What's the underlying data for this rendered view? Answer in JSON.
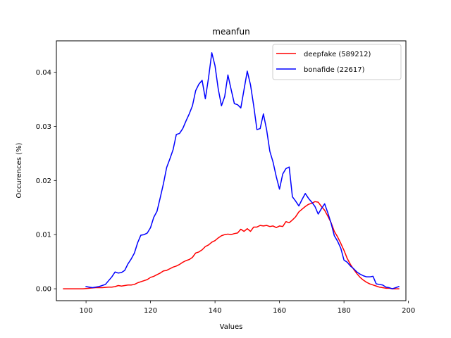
{
  "chart_data": {
    "type": "line",
    "title": "meanfun",
    "xlabel": "Values",
    "ylabel": "Occurences (%)",
    "xlim": [
      90.8,
      199.2
    ],
    "ylim": [
      -0.0022,
      0.0458
    ],
    "xticks": [
      100,
      120,
      140,
      160,
      180,
      200
    ],
    "yticks": [
      0.0,
      0.01,
      0.02,
      0.03,
      0.04
    ],
    "xtick_labels": [
      "100",
      "120",
      "140",
      "160",
      "180",
      "200"
    ],
    "ytick_labels": [
      "0.00",
      "0.01",
      "0.02",
      "0.03",
      "0.04"
    ],
    "grid": false,
    "legend_position": "top-right",
    "series": [
      {
        "name": "deepfake (589212)",
        "color": "#ff0000",
        "x": [
          93,
          95,
          97,
          99,
          101,
          103,
          105,
          107,
          108,
          109,
          110,
          111,
          112,
          113,
          114,
          115,
          116,
          117,
          118,
          119,
          120,
          121,
          122,
          123,
          124,
          125,
          126,
          127,
          128,
          129,
          130,
          131,
          132,
          133,
          134,
          135,
          136,
          137,
          138,
          139,
          140,
          141,
          142,
          143,
          144,
          145,
          146,
          147,
          148,
          149,
          150,
          151,
          152,
          153,
          154,
          155,
          156,
          157,
          158,
          159,
          160,
          161,
          162,
          163,
          164,
          165,
          166,
          167,
          168,
          169,
          170,
          171,
          172,
          173,
          174,
          175,
          176,
          177,
          178,
          179,
          180,
          181,
          182,
          183,
          184,
          185,
          186,
          187,
          188,
          189,
          190,
          191,
          192,
          193,
          194,
          195,
          196,
          197
        ],
        "values": [
          0.0,
          0.0,
          0.0,
          0.0,
          0.0001,
          0.0002,
          0.0002,
          0.0003,
          0.0003,
          0.0004,
          0.0006,
          0.0005,
          0.0006,
          0.0007,
          0.0007,
          0.0008,
          0.0011,
          0.0013,
          0.0015,
          0.0017,
          0.0021,
          0.0023,
          0.0026,
          0.0029,
          0.0033,
          0.0034,
          0.0037,
          0.004,
          0.0042,
          0.0045,
          0.0049,
          0.0052,
          0.0054,
          0.0058,
          0.0066,
          0.0068,
          0.0072,
          0.0078,
          0.0081,
          0.0086,
          0.0089,
          0.0094,
          0.0098,
          0.01,
          0.0101,
          0.01,
          0.0102,
          0.0103,
          0.011,
          0.0106,
          0.0111,
          0.0106,
          0.0114,
          0.0114,
          0.0117,
          0.0116,
          0.0117,
          0.0115,
          0.0116,
          0.0113,
          0.0116,
          0.0115,
          0.0124,
          0.0122,
          0.0127,
          0.0133,
          0.0142,
          0.0147,
          0.0152,
          0.0156,
          0.0158,
          0.0161,
          0.016,
          0.0152,
          0.0145,
          0.0134,
          0.0122,
          0.0106,
          0.0096,
          0.0084,
          0.0071,
          0.0056,
          0.0045,
          0.0036,
          0.0028,
          0.0021,
          0.0016,
          0.0012,
          0.0009,
          0.0007,
          0.0005,
          0.0003,
          0.0002,
          0.0001,
          0.0001,
          0.0,
          0.0,
          0.0
        ]
      },
      {
        "name": "bonafide (22617)",
        "color": "#0000ff",
        "x": [
          100,
          102,
          104,
          106,
          107,
          108,
          109,
          110,
          111,
          112,
          113,
          114,
          115,
          116,
          117,
          118,
          119,
          120,
          121,
          122,
          123,
          124,
          125,
          126,
          127,
          128,
          129,
          130,
          131,
          132,
          133,
          134,
          135,
          136,
          137,
          138,
          139,
          140,
          141,
          142,
          143,
          144,
          145,
          146,
          147,
          148,
          149,
          150,
          151,
          152,
          153,
          154,
          155,
          156,
          157,
          158,
          159,
          160,
          161,
          162,
          163,
          164,
          165,
          166,
          167,
          168,
          169,
          170,
          171,
          172,
          173,
          174,
          175,
          176,
          177,
          178,
          179,
          180,
          181,
          182,
          183,
          184,
          185,
          186,
          187,
          188,
          189,
          190,
          191,
          192,
          193,
          194,
          195,
          196,
          197
        ],
        "values": [
          0.0004,
          0.0002,
          0.0004,
          0.0008,
          0.0015,
          0.0022,
          0.0031,
          0.0029,
          0.003,
          0.0034,
          0.0046,
          0.0055,
          0.0066,
          0.0085,
          0.0099,
          0.01,
          0.0103,
          0.0113,
          0.0132,
          0.0143,
          0.0168,
          0.0194,
          0.0224,
          0.024,
          0.0257,
          0.0285,
          0.0287,
          0.0296,
          0.031,
          0.0323,
          0.0338,
          0.0366,
          0.0378,
          0.0385,
          0.0351,
          0.039,
          0.0436,
          0.0412,
          0.0369,
          0.0338,
          0.0355,
          0.0395,
          0.0368,
          0.0342,
          0.034,
          0.0334,
          0.0368,
          0.0402,
          0.0377,
          0.0338,
          0.0294,
          0.0296,
          0.0323,
          0.0294,
          0.0254,
          0.0234,
          0.0207,
          0.0184,
          0.0212,
          0.0222,
          0.0225,
          0.017,
          0.0162,
          0.0153,
          0.0165,
          0.0176,
          0.0167,
          0.016,
          0.0152,
          0.0138,
          0.0148,
          0.0157,
          0.014,
          0.0121,
          0.0098,
          0.0088,
          0.0075,
          0.0053,
          0.0049,
          0.0042,
          0.0037,
          0.0031,
          0.0027,
          0.0024,
          0.0022,
          0.0022,
          0.0023,
          0.0009,
          0.0008,
          0.0007,
          0.0003,
          0.0002,
          0.0,
          0.0002,
          0.0004
        ]
      }
    ]
  }
}
